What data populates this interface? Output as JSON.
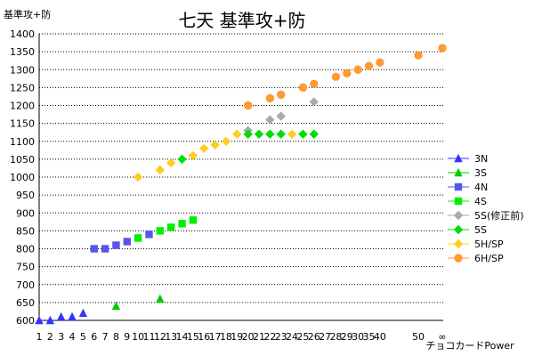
{
  "chart_data": {
    "type": "scatter",
    "title": "七天 基準攻+防",
    "ylabel": "基準攻+防",
    "xlabel": "チョコカードPower",
    "ylim": [
      600,
      1400
    ],
    "y_ticks": [
      600,
      650,
      700,
      750,
      800,
      850,
      900,
      950,
      1000,
      1050,
      1100,
      1150,
      1200,
      1250,
      1300,
      1350,
      1400
    ],
    "x_categories": [
      "1",
      "2",
      "3",
      "4",
      "5",
      "6",
      "7",
      "8",
      "9",
      "10",
      "11",
      "12",
      "13",
      "14",
      "15",
      "16",
      "17",
      "18",
      "19",
      "20",
      "21",
      "22",
      "23",
      "24",
      "25",
      "26",
      "27",
      "28",
      "29",
      "30",
      "35",
      "40",
      "50",
      "∞"
    ],
    "grid": "horizontal dotted",
    "legend_position": "right",
    "series": [
      {
        "name": "3N",
        "color": "#3333ff",
        "marker": "triangle",
        "points": [
          [
            "1",
            600
          ],
          [
            "2",
            600
          ],
          [
            "3",
            610
          ],
          [
            "4",
            610
          ],
          [
            "5",
            620
          ]
        ]
      },
      {
        "name": "3S",
        "color": "#00cc00",
        "marker": "triangle",
        "points": [
          [
            "8",
            640
          ],
          [
            "12",
            660
          ]
        ]
      },
      {
        "name": "4N",
        "color": "#5555ee",
        "marker": "square",
        "points": [
          [
            "6",
            800
          ],
          [
            "7",
            800
          ],
          [
            "8",
            810
          ],
          [
            "9",
            820
          ],
          [
            "11",
            840
          ]
        ]
      },
      {
        "name": "4S",
        "color": "#00ee00",
        "marker": "square",
        "points": [
          [
            "10",
            830
          ],
          [
            "12",
            850
          ],
          [
            "13",
            860
          ],
          [
            "14",
            870
          ],
          [
            "15",
            880
          ]
        ]
      },
      {
        "name": "5S(修正前)",
        "color": "#aaaaaa",
        "marker": "diamond",
        "points": [
          [
            "20",
            1130
          ],
          [
            "22",
            1160
          ],
          [
            "23",
            1170
          ],
          [
            "26",
            1210
          ]
        ]
      },
      {
        "name": "5S",
        "color": "#00dd00",
        "marker": "diamond",
        "points": [
          [
            "14",
            1050
          ],
          [
            "20",
            1120
          ],
          [
            "21",
            1120
          ],
          [
            "22",
            1120
          ],
          [
            "23",
            1120
          ],
          [
            "25",
            1120
          ],
          [
            "26",
            1120
          ]
        ]
      },
      {
        "name": "5H/SP",
        "color": "#ffcc22",
        "marker": "diamond",
        "points": [
          [
            "10",
            1000
          ],
          [
            "12",
            1020
          ],
          [
            "13",
            1040
          ],
          [
            "15",
            1060
          ],
          [
            "16",
            1080
          ],
          [
            "17",
            1090
          ],
          [
            "18",
            1100
          ],
          [
            "19",
            1120
          ],
          [
            "24",
            1120
          ]
        ]
      },
      {
        "name": "6H/SP",
        "color": "#ff9933",
        "marker": "circle",
        "points": [
          [
            "20",
            1200
          ],
          [
            "22",
            1220
          ],
          [
            "23",
            1230
          ],
          [
            "25",
            1250
          ],
          [
            "26",
            1260
          ],
          [
            "28",
            1280
          ],
          [
            "29",
            1290
          ],
          [
            "30",
            1300
          ],
          [
            "35",
            1310
          ],
          [
            "40",
            1320
          ],
          [
            "50",
            1340
          ],
          [
            "∞",
            1360
          ]
        ]
      }
    ]
  }
}
